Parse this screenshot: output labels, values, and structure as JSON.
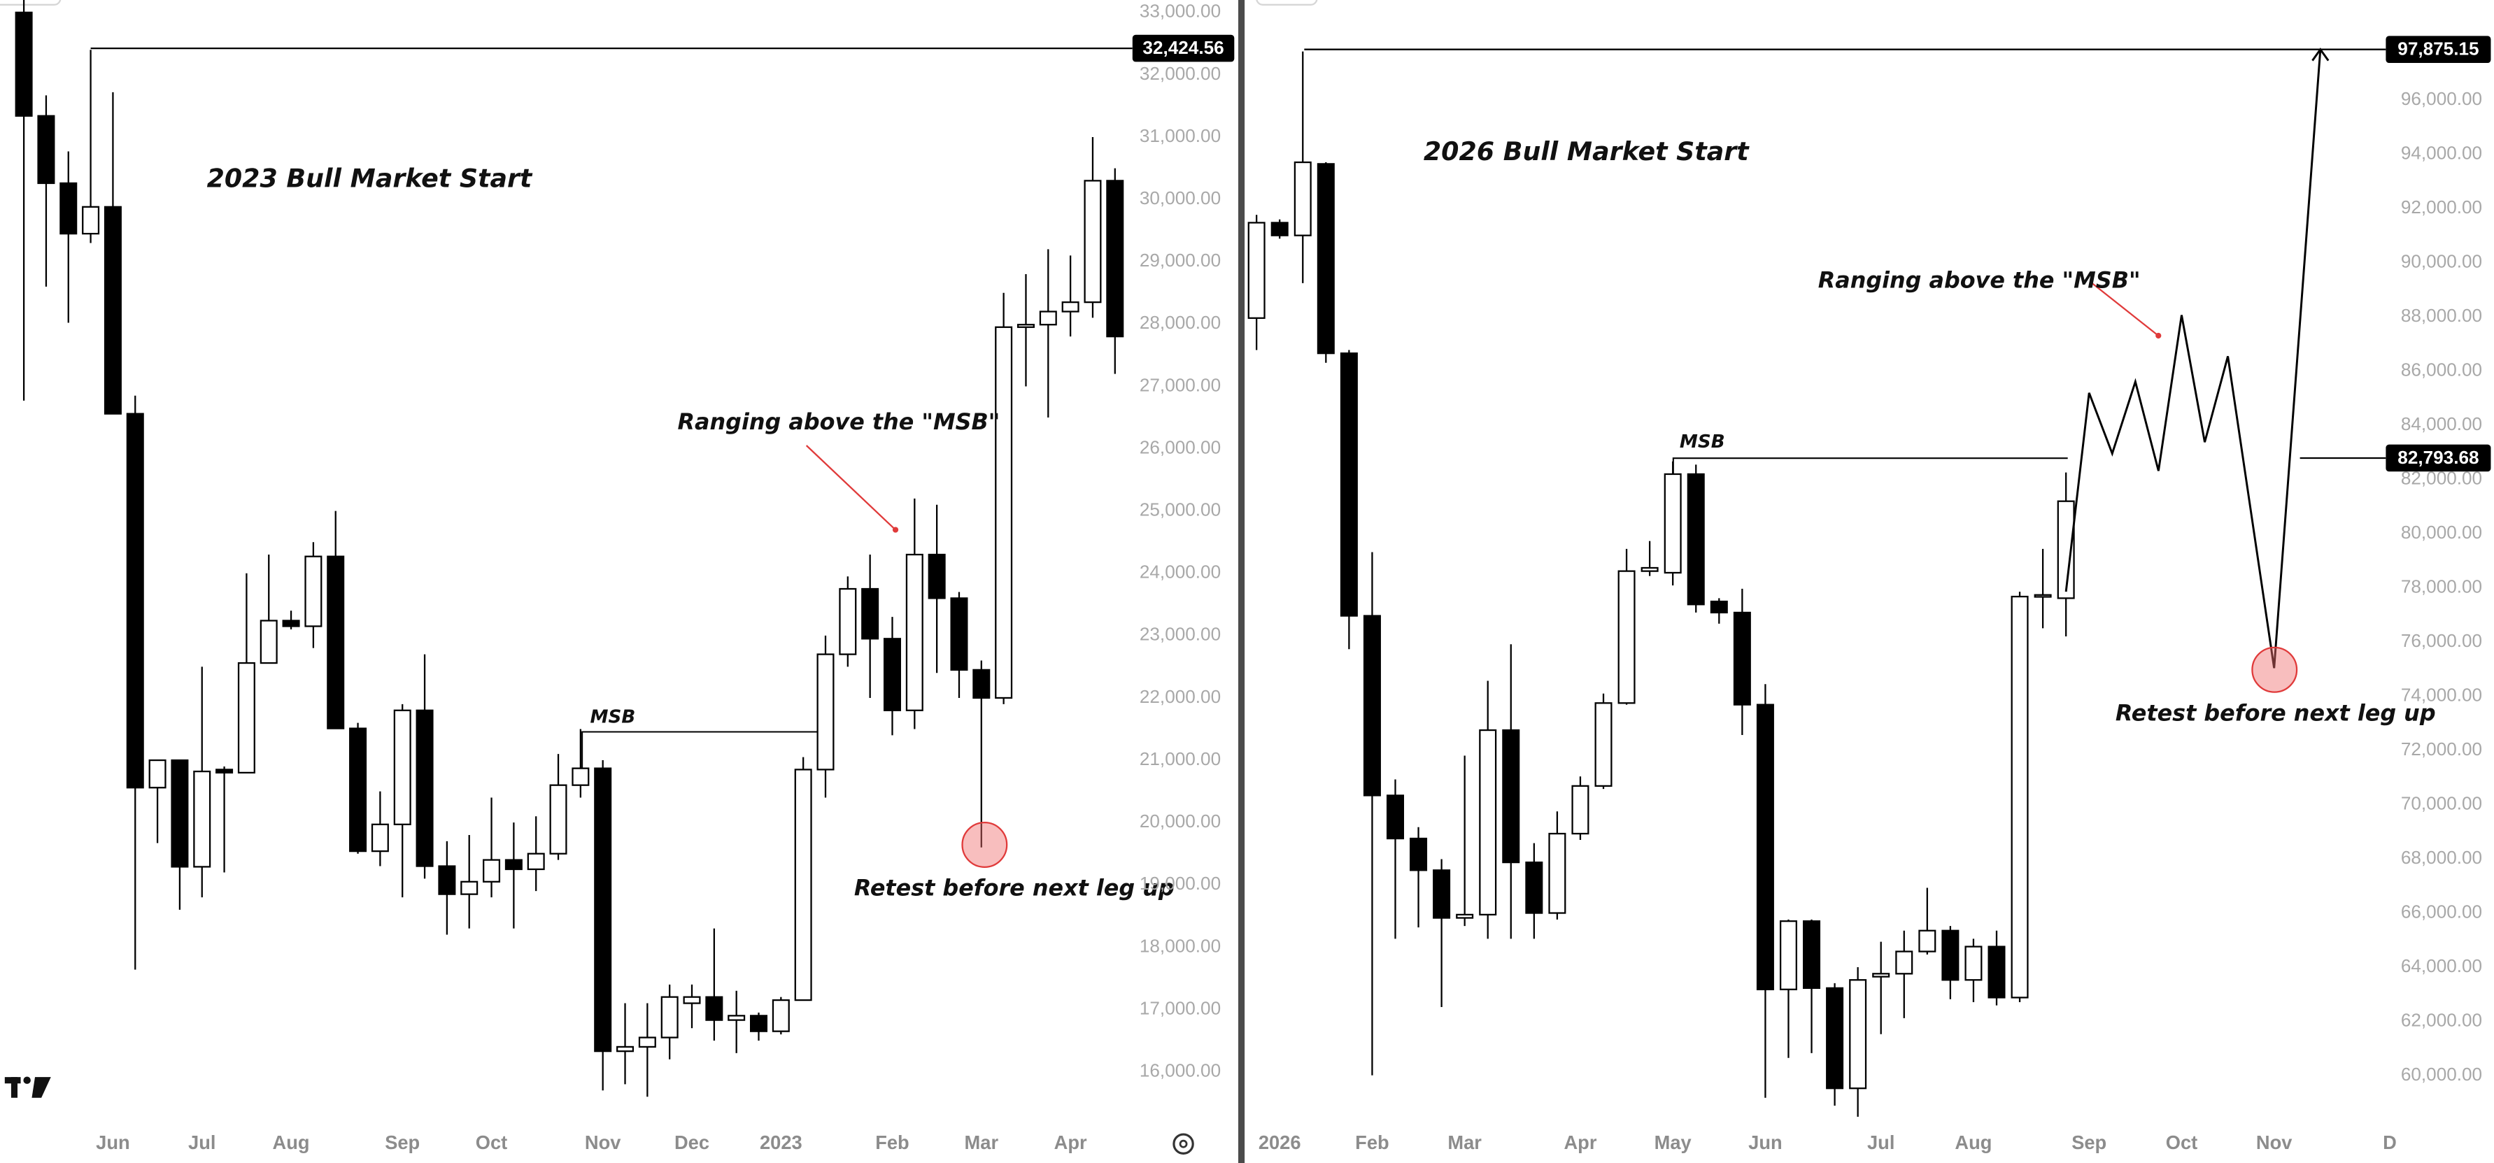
{
  "chart_data": [
    {
      "type": "candlestick",
      "title": "2023 Bull Market Start",
      "categories": [
        null,
        null,
        null,
        null,
        "Jun",
        null,
        null,
        null,
        "Jul",
        null,
        null,
        null,
        "Aug",
        null,
        null,
        null,
        null,
        "Sep",
        null,
        null,
        null,
        "Oct",
        null,
        null,
        null,
        null,
        "Nov",
        null,
        null,
        null,
        "Dec",
        null,
        null,
        null,
        "2023",
        null,
        null,
        null,
        null,
        "Feb",
        null,
        null,
        null,
        "Mar",
        null,
        null,
        null,
        "Apr",
        null,
        null
      ],
      "open": [
        33000,
        31340,
        30260,
        29450,
        29880,
        26560,
        20560,
        21000,
        19290,
        20850,
        20800,
        22560,
        23240,
        23150,
        24270,
        21510,
        19540,
        19970,
        21800,
        19300,
        18850,
        19050,
        19400,
        19250,
        19500,
        20600,
        20870,
        16330,
        16400,
        16550,
        17100,
        17200,
        16830,
        16900,
        16650,
        17150,
        20850,
        22700,
        23750,
        22950,
        21800,
        24300,
        23600,
        22450,
        22000,
        27950,
        27990,
        28200,
        28350,
        30300
      ],
      "high": [
        33200,
        31670,
        30770,
        32400,
        31720,
        26850,
        21000,
        21000,
        22500,
        20900,
        24000,
        24300,
        23400,
        24500,
        25000,
        21600,
        20500,
        21900,
        22700,
        19700,
        19800,
        20400,
        20000,
        20100,
        21100,
        21500,
        21000,
        17100,
        17100,
        17400,
        17400,
        18300,
        17300,
        16950,
        17200,
        21050,
        23000,
        23950,
        24300,
        23300,
        25200,
        25100,
        23700,
        22600,
        28500,
        28800,
        29200,
        29100,
        31000,
        30500
      ],
      "low": [
        26770,
        28600,
        28020,
        29300,
        26560,
        17640,
        19670,
        18600,
        18800,
        19200,
        20800,
        22600,
        23100,
        22800,
        21500,
        19500,
        19300,
        18800,
        19100,
        18200,
        18300,
        18800,
        18300,
        18900,
        19400,
        20400,
        15700,
        15800,
        15600,
        16200,
        16700,
        16500,
        16300,
        16500,
        16600,
        17150,
        20400,
        22500,
        22000,
        21400,
        21500,
        22400,
        22000,
        19600,
        21900,
        27000,
        26500,
        27800,
        28100,
        27200
      ],
      "close": [
        31340,
        30260,
        29450,
        29880,
        26560,
        20560,
        21000,
        19290,
        20820,
        20800,
        22560,
        23240,
        23150,
        24270,
        21510,
        19540,
        19970,
        21800,
        19300,
        18850,
        19050,
        19400,
        19250,
        19500,
        20600,
        20870,
        16330,
        16400,
        16550,
        17200,
        17200,
        16830,
        16900,
        16650,
        17150,
        20850,
        22700,
        23750,
        22950,
        21800,
        24300,
        23600,
        22450,
        22000,
        27950,
        27990,
        28200,
        28350,
        30300,
        27800
      ],
      "up_color": "#ffffff",
      "down_color": "#000000",
      "ylim": [
        15200,
        33200
      ],
      "yticks": [
        {
          "value": 33000,
          "label": "33,000.00"
        },
        {
          "value": 32000,
          "label": "32,000.00"
        },
        {
          "value": 31000,
          "label": "31,000.00"
        },
        {
          "value": 30000,
          "label": "30,000.00"
        },
        {
          "value": 29000,
          "label": "29,000.00"
        },
        {
          "value": 28000,
          "label": "28,000.00"
        },
        {
          "value": 27000,
          "label": "27,000.00"
        },
        {
          "value": 26000,
          "label": "26,000.00"
        },
        {
          "value": 25000,
          "label": "25,000.00"
        },
        {
          "value": 24000,
          "label": "24,000.00"
        },
        {
          "value": 23000,
          "label": "23,000.00"
        },
        {
          "value": 22000,
          "label": "22,000.00"
        },
        {
          "value": 21000,
          "label": "21,000.00"
        },
        {
          "value": 20000,
          "label": "20,000.00"
        },
        {
          "value": 19000,
          "label": "19,000.00"
        },
        {
          "value": 18000,
          "label": "18,000.00"
        },
        {
          "value": 17000,
          "label": "17,000.00"
        },
        {
          "value": 16000,
          "label": "16,000.00"
        }
      ],
      "levels": [
        {
          "value": 32424.56,
          "label": "32,424.56"
        }
      ],
      "annotations": [
        "Ranging above the \"MSB\"",
        "MSB",
        "Retest before next leg up"
      ]
    },
    {
      "type": "candlestick",
      "title": "2026 Bull Market Start",
      "categories": [
        null,
        "2026",
        null,
        null,
        null,
        "Feb",
        null,
        null,
        null,
        "Mar",
        null,
        null,
        null,
        null,
        "Apr",
        null,
        null,
        null,
        "May",
        null,
        null,
        null,
        "Jun",
        null,
        null,
        null,
        null,
        "Jul",
        null,
        null,
        null,
        "Aug",
        null,
        null,
        null,
        null,
        "Sep",
        null,
        null,
        null,
        "Oct",
        null,
        null,
        null,
        "Nov",
        null,
        null,
        null,
        null,
        "D"
      ],
      "open": [
        87960,
        91480,
        91010,
        93650,
        86660,
        76970,
        70340,
        68750,
        67580,
        65820,
        65940,
        72750,
        67870,
        66000,
        68930,
        70690,
        73750,
        78620,
        78560,
        82200,
        77500,
        77090,
        73690,
        63180,
        65700,
        63230,
        59530,
        63650,
        63760,
        64580,
        65350,
        63530,
        64760,
        62880,
        77680,
        77620,
        null,
        null,
        null,
        null,
        null,
        null,
        null,
        null,
        null,
        null,
        null,
        null,
        null,
        null
      ],
      "high": [
        91770,
        91600,
        97800,
        93710,
        86780,
        79320,
        70930,
        69170,
        67990,
        71810,
        74570,
        75920,
        68580,
        69750,
        71040,
        74100,
        79440,
        79730,
        82670,
        82550,
        77620,
        77970,
        74450,
        65760,
        65760,
        63410,
        64000,
        64940,
        65350,
        66930,
        65520,
        65050,
        65350,
        77860,
        79440,
        82260,
        null,
        null,
        null,
        null,
        null,
        null,
        null,
        null,
        null,
        null,
        null,
        null,
        null,
        null
      ],
      "low": [
        86780,
        90890,
        89250,
        86310,
        75740,
        60010,
        65050,
        65470,
        62530,
        65520,
        65050,
        65050,
        65050,
        65760,
        68700,
        70580,
        73690,
        78440,
        78090,
        77090,
        76680,
        72570,
        59180,
        60650,
        60830,
        58890,
        58480,
        61530,
        62120,
        64470,
        62820,
        62710,
        62590,
        62710,
        76510,
        76210,
        null,
        null,
        null,
        null,
        null,
        null,
        null,
        null,
        null,
        null,
        null,
        null,
        null,
        null
      ],
      "close": [
        91480,
        91010,
        93710,
        86660,
        76970,
        70340,
        68750,
        67580,
        65820,
        65940,
        72750,
        67870,
        66000,
        68930,
        70690,
        73750,
        78620,
        78740,
        82200,
        77390,
        77090,
        73690,
        63180,
        65700,
        63230,
        59530,
        63530,
        63760,
        64580,
        65350,
        63530,
        64760,
        62880,
        77680,
        77740,
        81200,
        null,
        null,
        null,
        null,
        null,
        null,
        null,
        null,
        null,
        null,
        null,
        null,
        null,
        null
      ],
      "projection": [
        null,
        null,
        null,
        null,
        null,
        null,
        null,
        null,
        null,
        null,
        null,
        null,
        null,
        null,
        null,
        null,
        null,
        null,
        null,
        null,
        null,
        null,
        null,
        null,
        null,
        null,
        null,
        null,
        null,
        null,
        null,
        null,
        null,
        null,
        null,
        77860,
        85200,
        82960,
        85610,
        82320,
        88070,
        83380,
        86550,
        80800,
        75040,
        86460,
        97875.15,
        null,
        null,
        null
      ],
      "projection_color": "#000000",
      "up_color": "#ffffff",
      "down_color": "#000000",
      "ylim": [
        58300,
        99700
      ],
      "yticks": [
        {
          "value": 96000,
          "label": "96,000.00"
        },
        {
          "value": 94000,
          "label": "94,000.00"
        },
        {
          "value": 92000,
          "label": "92,000.00"
        },
        {
          "value": 90000,
          "label": "90,000.00"
        },
        {
          "value": 88000,
          "label": "88,000.00"
        },
        {
          "value": 86000,
          "label": "86,000.00"
        },
        {
          "value": 84000,
          "label": "84,000.00"
        },
        {
          "value": 82000,
          "label": "82,000.00"
        },
        {
          "value": 80000,
          "label": "80,000.00"
        },
        {
          "value": 78000,
          "label": "78,000.00"
        },
        {
          "value": 76000,
          "label": "76,000.00"
        },
        {
          "value": 74000,
          "label": "74,000.00"
        },
        {
          "value": 72000,
          "label": "72,000.00"
        },
        {
          "value": 70000,
          "label": "70,000.00"
        },
        {
          "value": 68000,
          "label": "68,000.00"
        },
        {
          "value": 66000,
          "label": "66,000.00"
        },
        {
          "value": 64000,
          "label": "64,000.00"
        },
        {
          "value": 62000,
          "label": "62,000.00"
        },
        {
          "value": 60000,
          "label": "60,000.00"
        }
      ],
      "levels": [
        {
          "value": 97875.15,
          "label": "97,875.15"
        },
        {
          "value": 82793.68,
          "label": "82,793.68"
        }
      ],
      "annotations": [
        "Ranging above the \"MSB\"",
        "MSB",
        "Retest before next leg up"
      ]
    }
  ]
}
